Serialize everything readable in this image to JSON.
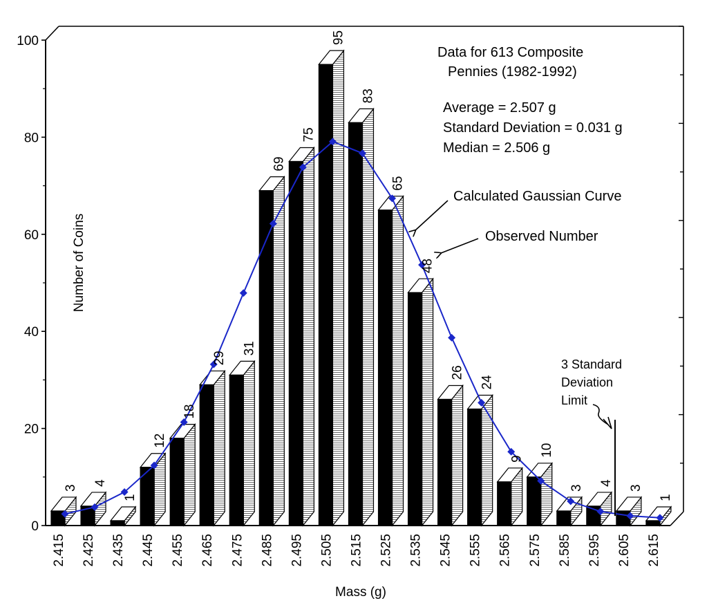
{
  "chart_data": {
    "type": "bar",
    "title": "",
    "xlabel": "Mass (g)",
    "ylabel": "Number of Coins",
    "ylim": [
      0,
      100
    ],
    "yticks": [
      0,
      20,
      40,
      60,
      80,
      100
    ],
    "categories": [
      "2.415",
      "2.425",
      "2.435",
      "2.445",
      "2.455",
      "2.465",
      "2.475",
      "2.485",
      "2.495",
      "2.505",
      "2.515",
      "2.525",
      "2.535",
      "2.545",
      "2.555",
      "2.565",
      "2.575",
      "2.585",
      "2.595",
      "2.605",
      "2.615"
    ],
    "series": [
      {
        "name": "Observed Number",
        "type": "bar",
        "values": [
          3,
          4,
          1,
          12,
          18,
          29,
          31,
          69,
          75,
          95,
          83,
          65,
          48,
          26,
          24,
          9,
          10,
          3,
          4,
          3,
          1
        ],
        "labels": [
          "3",
          "4",
          "1",
          "12",
          "18",
          "29",
          "31",
          "69",
          "75",
          "95",
          "83",
          "65",
          "48",
          "26",
          "24",
          "9",
          "10",
          "3",
          "4",
          "3",
          "1"
        ]
      },
      {
        "name": "Calculated Gaussian Curve",
        "type": "line",
        "values": [
          2.4,
          3.8,
          6.9,
          12.4,
          21.3,
          33.2,
          47.9,
          62.2,
          73.8,
          79.1,
          76.7,
          67.4,
          53.7,
          38.7,
          25.3,
          15.2,
          9.2,
          5.0,
          2.9,
          2.0,
          1.6
        ]
      }
    ],
    "colors": {
      "bar_front": "#000000",
      "bar_side_hatch": "#c8c8c8",
      "curve": "#1a27c9"
    },
    "annotations": {
      "data_title_line1": "Data for 613 Composite",
      "data_title_line2": "Pennies (1982-1992)",
      "average": "Average = 2.507 g",
      "std_dev": "Standard Deviation = 0.031 g",
      "median": "Median = 2.506 g",
      "gaussian_label": "Calculated Gaussian Curve",
      "observed_label": "Observed Number",
      "limit_line1": "3 Standard",
      "limit_line2": "Deviation",
      "limit_line3": "Limit"
    },
    "grid": false,
    "legend": "none"
  }
}
